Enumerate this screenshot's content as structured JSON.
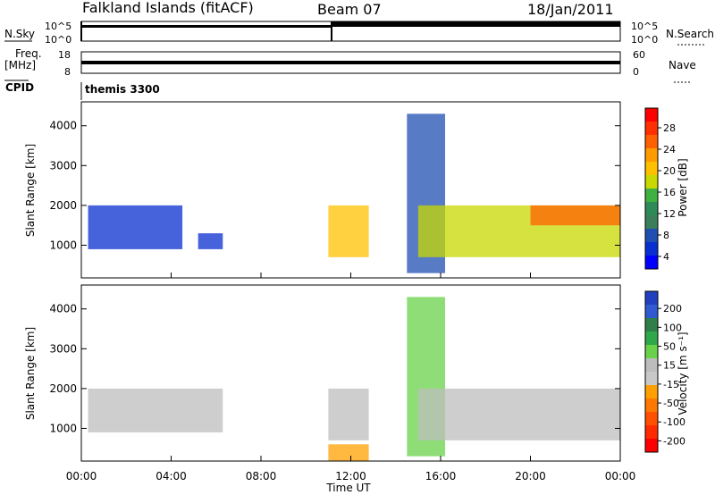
{
  "header": {
    "station": "Falkland Islands (fitACF)",
    "beam": "Beam 07",
    "date": "18/Jan/2011"
  },
  "top_panel": {
    "left_label": "N.Sky",
    "left_ticks": [
      "10^5",
      "10^0"
    ],
    "right_label": "N.Search",
    "right_ticks": [
      "10^5",
      "10^0"
    ]
  },
  "freq_panel": {
    "left_label_line1": "Freq.",
    "left_label_line2": "[MHz]",
    "left_ticks": [
      "18",
      "8"
    ],
    "right_label": "Nave",
    "right_ticks": [
      "60",
      "0"
    ]
  },
  "cpid": {
    "label": "CPID",
    "value": "themis 3300"
  },
  "power_panel": {
    "ylabel": "Slant Range [km]",
    "yticks": [
      "4000",
      "3000",
      "2000",
      "1000"
    ],
    "colorbar_label": "Power [dB]",
    "colorbar_ticks": [
      "28",
      "24",
      "20",
      "16",
      "12",
      "8",
      "4"
    ],
    "colorbar_colors": [
      "#ff0000",
      "#ff3000",
      "#ff6000",
      "#ff9a00",
      "#ffc000",
      "#c8d800",
      "#40b040",
      "#2e8b57",
      "#3a7f5a",
      "#1f4fb0",
      "#0a2fd0",
      "#0000ff"
    ]
  },
  "velocity_panel": {
    "ylabel": "Slant Range [km]",
    "yticks": [
      "4000",
      "3000",
      "2000",
      "1000"
    ],
    "colorbar_label": "Velocity [m s⁻¹]",
    "colorbar_ticks": [
      "200",
      "100",
      "50",
      "15",
      "-15",
      "-50",
      "-100",
      "-200"
    ],
    "colorbar_colors": [
      "#2040c0",
      "#305ad0",
      "#2f7f4a",
      "#2fa84a",
      "#6ad24a",
      "#bdbdbd",
      "#c8c8c8",
      "#ffa000",
      "#ff7800",
      "#ff5000",
      "#ff2a00",
      "#ff0000"
    ]
  },
  "x_axis": {
    "title": "Time UT",
    "ticks": [
      "00:00",
      "04:00",
      "08:00",
      "12:00",
      "16:00",
      "20:00",
      "00:00"
    ]
  },
  "chart_data": [
    {
      "type": "heatmap",
      "title": "Power [dB]",
      "xlabel": "Time UT",
      "ylabel": "Slant Range [km]",
      "xlim": [
        0,
        24
      ],
      "ylim": [
        180,
        4600
      ],
      "clim": [
        0,
        30
      ],
      "regions": [
        {
          "t0": 0.3,
          "t1": 4.5,
          "r0": 900,
          "r1": 2000,
          "value": 3
        },
        {
          "t0": 5.2,
          "t1": 6.3,
          "r0": 900,
          "r1": 1300,
          "value": 4
        },
        {
          "t0": 11.0,
          "t1": 12.8,
          "r0": 700,
          "r1": 2000,
          "value": 18
        },
        {
          "t0": 14.5,
          "t1": 16.2,
          "r0": 300,
          "r1": 4300,
          "value": 6
        },
        {
          "t0": 15.0,
          "t1": 24.0,
          "r0": 700,
          "r1": 2000,
          "value": 16
        },
        {
          "t0": 20.0,
          "t1": 24.0,
          "r0": 1500,
          "r1": 2000,
          "value": 24
        }
      ]
    },
    {
      "type": "heatmap",
      "title": "Velocity [m s⁻¹]",
      "xlabel": "Time UT",
      "ylabel": "Slant Range [km]",
      "xlim": [
        0,
        24
      ],
      "ylim": [
        180,
        4600
      ],
      "clim": [
        -200,
        200
      ],
      "regions": [
        {
          "t0": 0.3,
          "t1": 6.3,
          "r0": 900,
          "r1": 2000,
          "value": 0
        },
        {
          "t0": 11.0,
          "t1": 12.8,
          "r0": 700,
          "r1": 2000,
          "value": 0
        },
        {
          "t0": 11.0,
          "t1": 12.8,
          "r0": 180,
          "r1": 600,
          "value": -60
        },
        {
          "t0": 14.5,
          "t1": 16.2,
          "r0": 300,
          "r1": 4300,
          "value": 40
        },
        {
          "t0": 15.0,
          "t1": 24.0,
          "r0": 700,
          "r1": 2000,
          "value": 0
        }
      ]
    }
  ]
}
